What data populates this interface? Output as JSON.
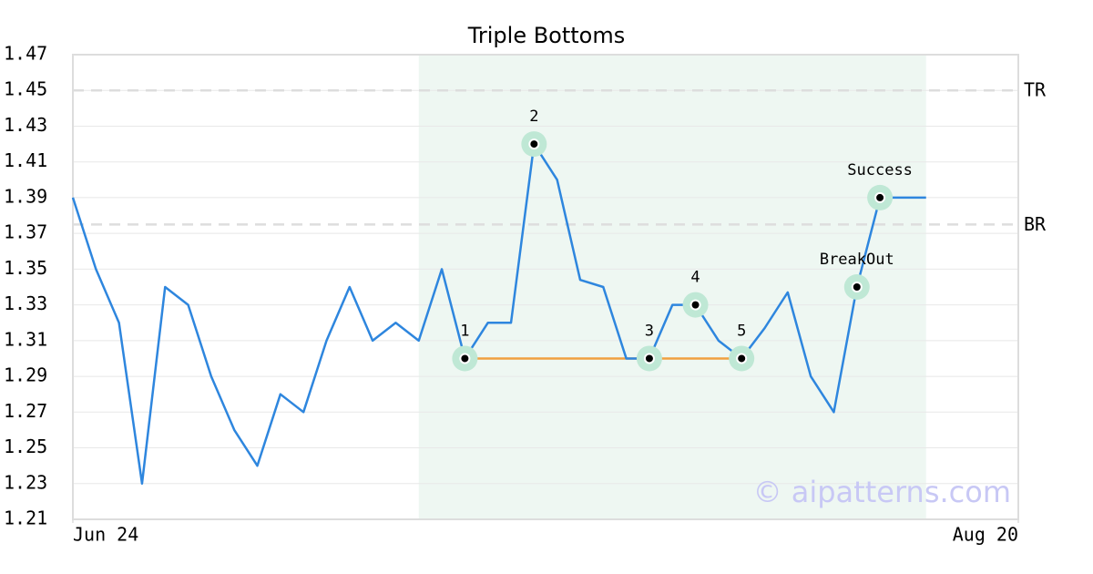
{
  "chart_data": {
    "type": "line",
    "title": "Triple Bottoms",
    "x": [
      0,
      1,
      2,
      3,
      4,
      5,
      6,
      7,
      8,
      9,
      10,
      11,
      12,
      13,
      14,
      15,
      16,
      17,
      18,
      19,
      20,
      21,
      22,
      23,
      24,
      25,
      26,
      27,
      28,
      29,
      30,
      31,
      32,
      33,
      34,
      35,
      36,
      37
    ],
    "series": [
      {
        "color": "#2e86de",
        "values": [
          1.39,
          1.35,
          1.32,
          1.23,
          1.34,
          1.33,
          1.29,
          1.26,
          1.24,
          1.28,
          1.27,
          1.31,
          1.34,
          1.31,
          1.32,
          1.31,
          1.35,
          1.3,
          1.32,
          1.32,
          1.42,
          1.4,
          1.344,
          1.34,
          1.3,
          1.3,
          1.33,
          1.33,
          1.31,
          1.3,
          1.317,
          1.337,
          1.29,
          1.27,
          1.34,
          1.39,
          1.39,
          1.39
        ]
      }
    ],
    "xlim": [
      0,
      41
    ],
    "xticks": [
      {
        "value": 0,
        "label": "Jun 24"
      },
      {
        "value": 41,
        "label": "Aug 20"
      }
    ],
    "ylim": [
      1.21,
      1.47
    ],
    "yticks": [
      1.21,
      1.23,
      1.25,
      1.27,
      1.29,
      1.31,
      1.33,
      1.35,
      1.37,
      1.39,
      1.41,
      1.43,
      1.45,
      1.47
    ],
    "grid": true,
    "highlight": [
      15,
      37
    ],
    "ref_lines": [
      {
        "value": 1.45,
        "label": "TR"
      },
      {
        "value": 1.375,
        "label": "BR"
      }
    ],
    "support": {
      "x": [
        17,
        29
      ],
      "y": 1.3,
      "color": "#f0a040"
    },
    "annotations": [
      {
        "x": 17,
        "y": 1.3,
        "label": "1"
      },
      {
        "x": 20,
        "y": 1.42,
        "label": "2"
      },
      {
        "x": 25,
        "y": 1.3,
        "label": "3"
      },
      {
        "x": 27,
        "y": 1.33,
        "label": "4"
      },
      {
        "x": 29,
        "y": 1.3,
        "label": "5"
      },
      {
        "x": 34,
        "y": 1.34,
        "label": "BreakOut"
      },
      {
        "x": 35,
        "y": 1.39,
        "label": "Success"
      }
    ],
    "watermark": "© aipatterns.com"
  }
}
